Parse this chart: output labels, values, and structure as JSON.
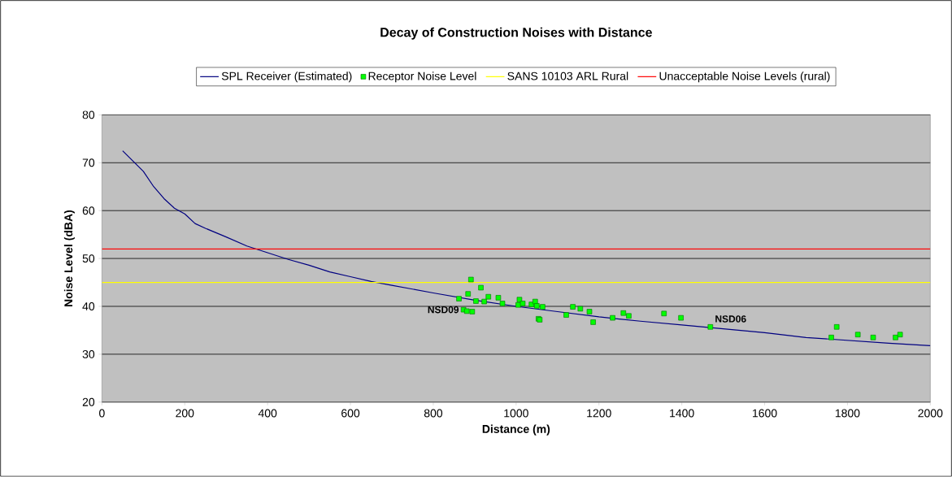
{
  "chart_data": {
    "type": "line",
    "title": "Decay of Construction Noises with Distance",
    "xlabel": "Distance (m)",
    "ylabel": "Noise Level (dBA)",
    "xlim": [
      0,
      2000
    ],
    "xticks": [
      0,
      200,
      400,
      600,
      800,
      1000,
      1200,
      1400,
      1600,
      1800,
      2000
    ],
    "ylim": [
      20,
      80
    ],
    "yticks": [
      20,
      30,
      40,
      50,
      60,
      70,
      80
    ],
    "grid": "y",
    "legend": "top",
    "series": [
      {
        "name": "SPL Receiver (Estimated)",
        "color": "#000080",
        "marker": "none",
        "x": [
          50,
          100,
          125,
          150,
          175,
          200,
          225,
          250,
          300,
          350,
          400,
          450,
          500,
          550,
          600,
          650,
          700,
          750,
          800,
          900,
          1000,
          1100,
          1200,
          1300,
          1400,
          1500,
          1600,
          1700,
          1800,
          1900,
          2000
        ],
        "values": [
          72.5,
          68.2,
          65,
          62.5,
          60.5,
          59.3,
          57.3,
          56.3,
          54.5,
          52.6,
          51.2,
          49.8,
          48.6,
          47.2,
          46.2,
          45.2,
          44.4,
          43.6,
          42.8,
          41.3,
          40.0,
          38.9,
          37.8,
          36.9,
          36.1,
          35.3,
          34.5,
          33.5,
          32.9,
          32.3,
          31.8
        ]
      },
      {
        "name": "Receptor Noise Level",
        "type": "scatter",
        "color": "#00ff00",
        "marker": "square",
        "x": [
          862,
          891,
          884,
          915,
          873,
          881,
          894,
          903,
          923,
          933,
          957,
          967,
          1008,
          1005,
          1016,
          1037,
          1046,
          1050,
          1064,
          1054,
          1057,
          1121,
          1137,
          1155,
          1177,
          1186,
          1233,
          1259,
          1272,
          1357,
          1398,
          1469,
          1774,
          1761,
          1825,
          1862,
          1916,
          1927
        ],
        "values": [
          41.6,
          45.6,
          42.6,
          43.9,
          39.3,
          39.0,
          38.9,
          41.1,
          41.0,
          42.0,
          41.8,
          40.6,
          41.4,
          40.3,
          40.6,
          40.4,
          41.0,
          40.1,
          39.9,
          37.4,
          37.2,
          38.2,
          39.9,
          39.5,
          38.9,
          36.7,
          37.6,
          38.6,
          38.0,
          38.5,
          37.6,
          35.7,
          35.7,
          33.5,
          34.1,
          33.5,
          33.5,
          34.1
        ]
      }
    ],
    "ref_lines": [
      {
        "axis": "y",
        "value": 45,
        "label": "SANS 10103 ARL Rural",
        "color": "#ffff00"
      },
      {
        "axis": "y",
        "value": 52,
        "label": "Unacceptable Noise Levels (rural)",
        "color": "#ff0000"
      }
    ],
    "annotations": [
      {
        "text": "NSD09",
        "x": 873,
        "y": 39.3
      },
      {
        "text": "NSD06",
        "x": 1469,
        "y": 35.7
      }
    ]
  }
}
